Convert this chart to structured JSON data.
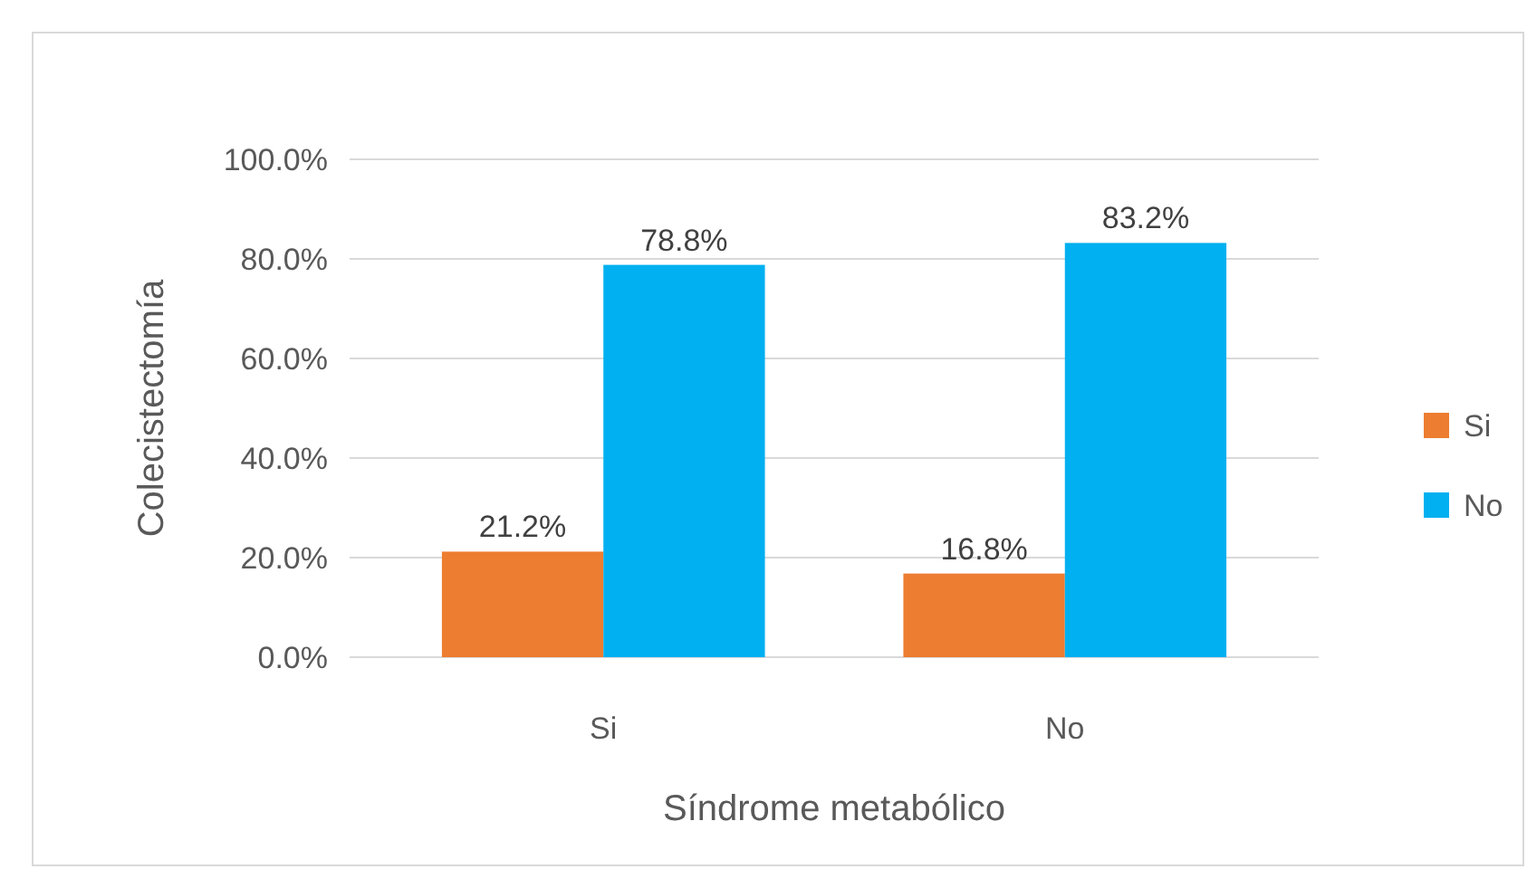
{
  "chart_data": {
    "type": "bar",
    "xlabel": "Síndrome metabólico",
    "ylabel": "Colecistectomía",
    "categories": [
      "Si",
      "No"
    ],
    "series": [
      {
        "name": "Si",
        "color": "#ed7d31",
        "values": [
          21.2,
          16.8
        ],
        "value_labels": [
          "21.2%",
          "16.8%"
        ]
      },
      {
        "name": "No",
        "color": "#00b0f0",
        "values": [
          78.8,
          83.2
        ],
        "value_labels": [
          "78.8%",
          "83.2%"
        ]
      }
    ],
    "ylim": [
      0,
      100
    ],
    "yticks": [
      {
        "value": 0,
        "label": "0.0%"
      },
      {
        "value": 20,
        "label": "20.0%"
      },
      {
        "value": 40,
        "label": "40.0%"
      },
      {
        "value": 60,
        "label": "60.0%"
      },
      {
        "value": 80,
        "label": "80.0%"
      },
      {
        "value": 100,
        "label": "100.0%"
      }
    ],
    "grid": "y",
    "legend": "right"
  }
}
